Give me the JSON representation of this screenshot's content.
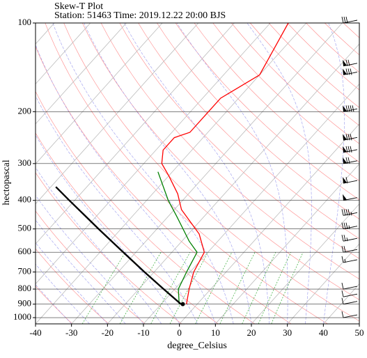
{
  "chart_data": {
    "type": "line",
    "title": "Skew-T Plot",
    "subtitle": "Station: 51463 Time: 2019.12.22 20:00 BJS",
    "xlabel": "degree_Celsius",
    "ylabel": "hectopascal",
    "xlim": [
      -40,
      50
    ],
    "ylim": [
      1050,
      100
    ],
    "y_scale": "log",
    "x_ticks": [
      -40,
      -30,
      -20,
      -10,
      0,
      10,
      20,
      30,
      40,
      50
    ],
    "x_tick_labels": [
      "-40",
      "-30",
      "-20",
      "-10",
      "0",
      "10",
      "20",
      "30",
      "40",
      "50"
    ],
    "y_ticks": [
      100,
      200,
      300,
      400,
      500,
      600,
      700,
      800,
      900,
      1000
    ],
    "y_tick_labels": [
      "100",
      "200",
      "300",
      "400",
      "500",
      "600",
      "700",
      "800",
      "900",
      "1000"
    ],
    "grid": true,
    "series": [
      {
        "key": "temperature",
        "color": "#ff0000",
        "points": [
          {
            "p": 900,
            "t": -3
          },
          {
            "p": 800,
            "t": -6
          },
          {
            "p": 700,
            "t": -9
          },
          {
            "p": 600,
            "t": -11
          },
          {
            "p": 520,
            "t": -17
          },
          {
            "p": 430,
            "t": -28
          },
          {
            "p": 380,
            "t": -33
          },
          {
            "p": 330,
            "t": -40
          },
          {
            "p": 300,
            "t": -45
          },
          {
            "p": 270,
            "t": -48
          },
          {
            "p": 245,
            "t": -48
          },
          {
            "p": 235,
            "t": -45
          },
          {
            "p": 200,
            "t": -45
          },
          {
            "p": 180,
            "t": -45
          },
          {
            "p": 150,
            "t": -40
          },
          {
            "p": 100,
            "t": -45
          }
        ]
      },
      {
        "key": "dewpoint",
        "color": "#008000",
        "points": [
          {
            "p": 900,
            "t": -5
          },
          {
            "p": 800,
            "t": -9
          },
          {
            "p": 700,
            "t": -11
          },
          {
            "p": 600,
            "t": -13
          },
          {
            "p": 550,
            "t": -18
          },
          {
            "p": 450,
            "t": -28
          },
          {
            "p": 400,
            "t": -34
          },
          {
            "p": 320,
            "t": -44
          }
        ]
      },
      {
        "key": "parcel",
        "color": "#000000",
        "points": [
          {
            "p": 900,
            "t": -4.5
          },
          {
            "p": 800,
            "t": -13.1
          },
          {
            "p": 700,
            "t": -22.7
          },
          {
            "p": 600,
            "t": -33.5
          },
          {
            "p": 500,
            "t": -46.2
          },
          {
            "p": 400,
            "t": -61.5
          },
          {
            "p": 360,
            "t": -68.6
          }
        ]
      }
    ],
    "surface_point": {
      "p": 900,
      "t": -4
    },
    "wind_barbs": [
      {
        "p": 1000,
        "speed_kt": 10
      },
      {
        "p": 900,
        "speed_kt": 10
      },
      {
        "p": 850,
        "speed_kt": 10
      },
      {
        "p": 800,
        "speed_kt": 10
      },
      {
        "p": 650,
        "speed_kt": 15
      },
      {
        "p": 600,
        "speed_kt": 20
      },
      {
        "p": 550,
        "speed_kt": 25
      },
      {
        "p": 500,
        "speed_kt": 35
      },
      {
        "p": 450,
        "speed_kt": 45
      },
      {
        "p": 400,
        "speed_kt": 50
      },
      {
        "p": 350,
        "speed_kt": 60
      },
      {
        "p": 300,
        "speed_kt": 70
      },
      {
        "p": 275,
        "speed_kt": 80
      },
      {
        "p": 250,
        "speed_kt": 80
      },
      {
        "p": 200,
        "speed_kt": 90
      },
      {
        "p": 150,
        "speed_kt": 80
      },
      {
        "p": 140,
        "speed_kt": 70
      },
      {
        "p": 100,
        "speed_kt": 30
      }
    ],
    "colors": {
      "isotherm": "#bbbbbb",
      "dry_adiabat": "#ff8888",
      "moist_adiabat": "#9999ee",
      "mixing_ratio": "#33aa33",
      "isobar": "#333333",
      "frame": "#000000"
    }
  }
}
